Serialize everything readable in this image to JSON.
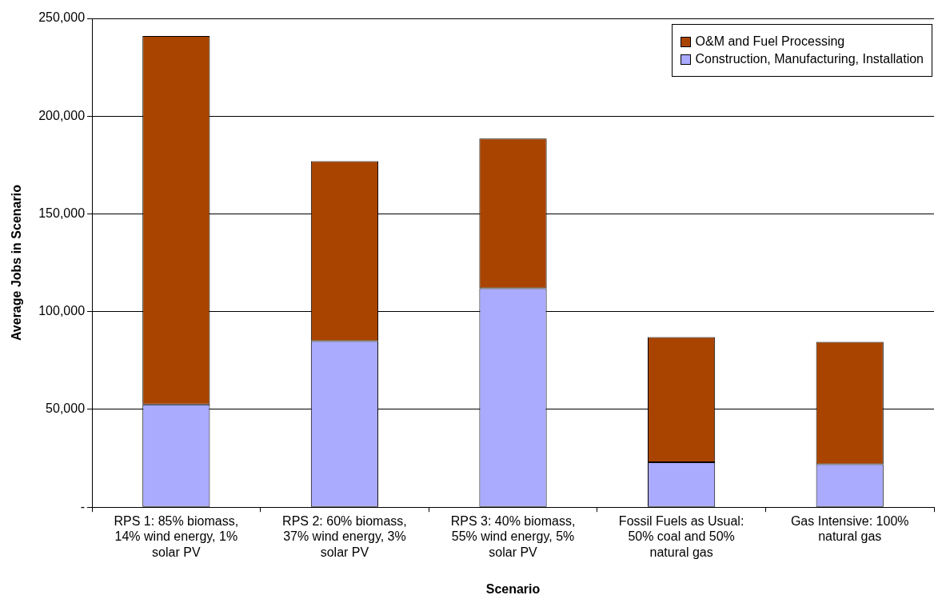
{
  "chart_data": {
    "type": "bar",
    "stacked": true,
    "xlabel": "Scenario",
    "ylabel": "Average Jobs in Scenario",
    "categories": [
      "RPS 1: 85% biomass, 14% wind energy, 1% solar PV",
      "RPS 2: 60% biomass, 37% wind energy, 3% solar PV",
      "RPS 3: 40% biomass, 55% wind energy, 5% solar PV",
      "Fossil Fuels as Usual: 50% coal and 50% natural gas",
      "Gas Intensive: 100% natural gas"
    ],
    "series": [
      {
        "name": "Construction, Manufacturing, Installation",
        "color": "#aaaaff",
        "values": [
          52500,
          85000,
          112000,
          23000,
          22000
        ]
      },
      {
        "name": "O&M and Fuel Processing",
        "color": "#a94400",
        "values": [
          188500,
          92000,
          76500,
          64000,
          62500
        ]
      }
    ],
    "ylim": [
      0,
      250000
    ],
    "yticks": [
      {
        "value": 0,
        "label": "-"
      },
      {
        "value": 50000,
        "label": "50,000"
      },
      {
        "value": 100000,
        "label": "100,000"
      },
      {
        "value": 150000,
        "label": "150,000"
      },
      {
        "value": 200000,
        "label": "200,000"
      },
      {
        "value": 250000,
        "label": "250,000"
      }
    ],
    "grid": "y",
    "legend": "top right"
  }
}
